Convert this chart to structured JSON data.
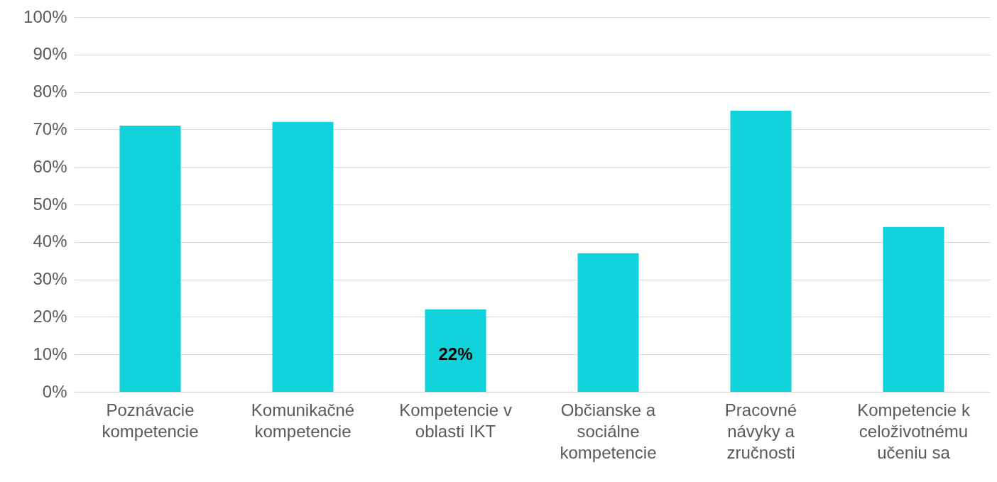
{
  "chart_data": {
    "type": "bar",
    "categories": [
      "Poznávacie kompetencie",
      "Komunikačné kompetencie",
      "Kompetencie v oblasti IKT",
      "Občianske a sociálne kompetencie",
      "Pracovné návyky a zručnosti",
      "Kompetencie k celoživotnému učeniu sa"
    ],
    "values": [
      71,
      72,
      22,
      37,
      75,
      44
    ],
    "color": "#10d2da",
    "value_labels": [
      null,
      null,
      "22%",
      null,
      null,
      null
    ],
    "ylim": [
      0,
      100
    ],
    "yticks": [
      {
        "value": 0,
        "label": "0%"
      },
      {
        "value": 10,
        "label": "10%"
      },
      {
        "value": 20,
        "label": "20%"
      },
      {
        "value": 30,
        "label": "30%"
      },
      {
        "value": 40,
        "label": "40%"
      },
      {
        "value": 50,
        "label": "50%"
      },
      {
        "value": 60,
        "label": "60%"
      },
      {
        "value": 70,
        "label": "70%"
      },
      {
        "value": 80,
        "label": "80%"
      },
      {
        "value": 90,
        "label": "90%"
      },
      {
        "value": 100,
        "label": "100%"
      }
    ],
    "grid": "y"
  }
}
